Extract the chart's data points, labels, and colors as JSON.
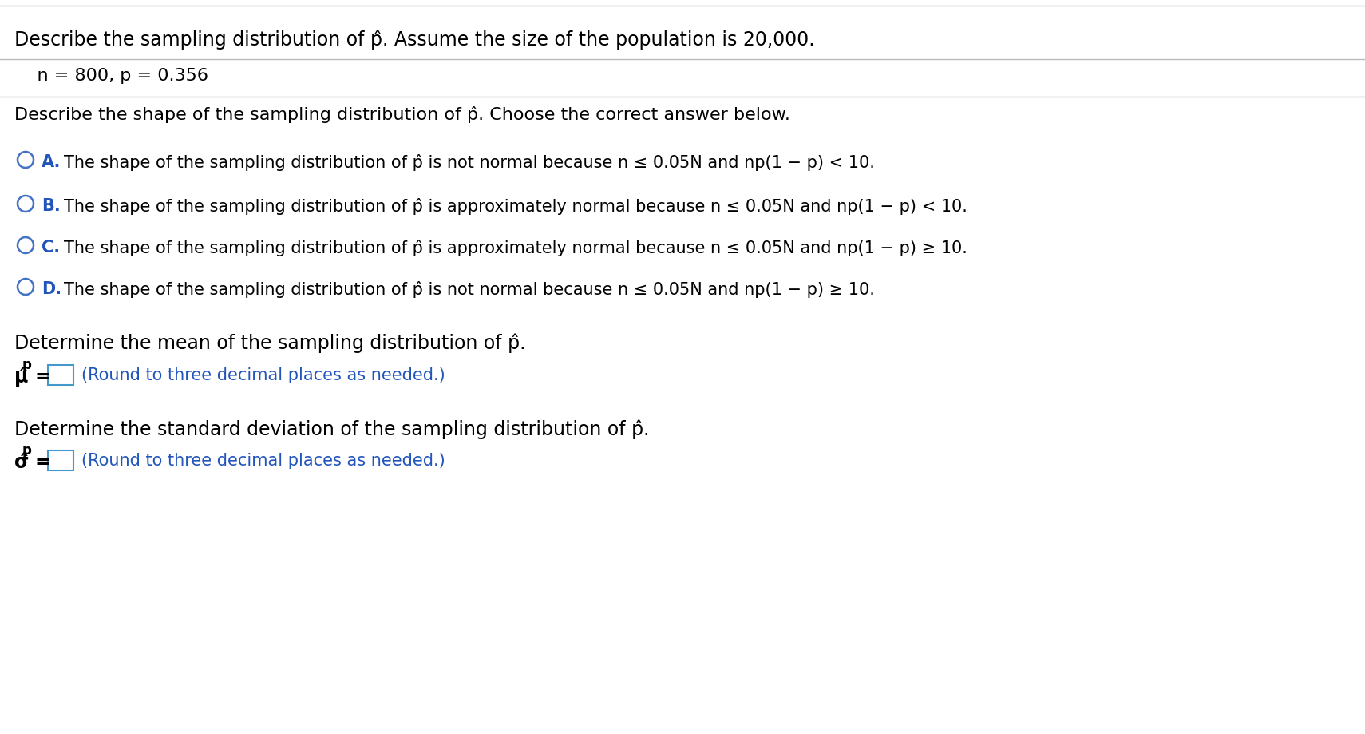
{
  "title_line1": "Describe the sampling distribution of p̂. Assume the size of the population is 20,000.",
  "subtitle": "    n = 800, p = 0.356",
  "question": "Describe the shape of the sampling distribution of p̂. Choose the correct answer below.",
  "option_A_label": "A.",
  "option_A_text": "The shape of the sampling distribution of p̂ is not normal because n ≤ 0.05N and np(1 − p) < 10.",
  "option_B_label": "B.",
  "option_B_text": "The shape of the sampling distribution of p̂ is approximately normal because n ≤ 0.05N and np(1 − p) < 10.",
  "option_C_label": "C.",
  "option_C_text": "The shape of the sampling distribution of p̂ is approximately normal because n ≤ 0.05N and np(1 − p) ≥ 10.",
  "option_D_label": "D.",
  "option_D_text": "The shape of the sampling distribution of p̂ is not normal because n ≤ 0.05N and np(1 − p) ≥ 10.",
  "mean_label": "Determine the mean of the sampling distribution of p̂.",
  "mean_hint": "(Round to three decimal places as needed.)",
  "std_label": "Determine the standard deviation of the sampling distribution of p̂.",
  "std_hint": "(Round to three decimal places as needed.)",
  "bg_color": "#ffffff",
  "text_color": "#000000",
  "option_label_color": "#2255BB",
  "circle_color": "#4472C4",
  "separator_color": "#bbbbbb",
  "hint_color": "#2255BB",
  "box_edge_color": "#4499CC",
  "greek_color": "#000000",
  "subscript_color": "#000000",
  "fs_title": 17,
  "fs_subtitle": 16,
  "fs_question": 16,
  "fs_option_label": 15,
  "fs_option_text": 15,
  "fs_section": 17,
  "fs_greek": 17,
  "fs_subscript": 12,
  "fs_hint": 15
}
